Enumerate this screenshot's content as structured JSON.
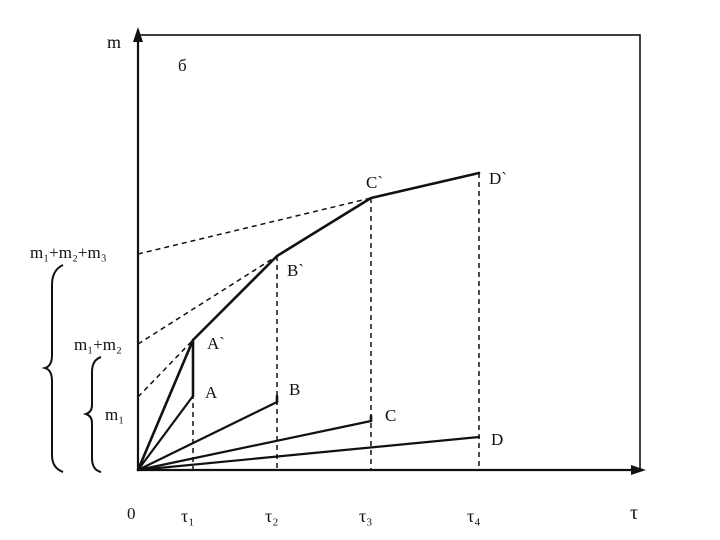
{
  "figure": {
    "panel_label": "б",
    "y_axis_label": "m",
    "x_axis_label": "τ",
    "origin_label": "0"
  },
  "x_ticks": [
    "τ₁",
    "τ₂",
    "τ₃",
    "τ₄"
  ],
  "y_ticks": [
    "m₁",
    "m₁+m₂",
    "m₁+m₂+m₃"
  ],
  "points": {
    "A": "A",
    "B": "B",
    "C": "C",
    "D": "D",
    "A_prime": "A`",
    "B_prime": "B`",
    "C_prime": "C`",
    "D_prime": "D`"
  }
}
